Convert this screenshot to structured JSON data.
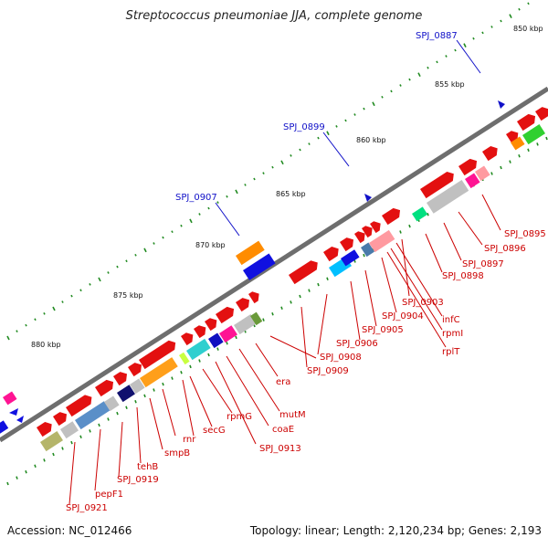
{
  "title": "Streptococcus pneumoniae JJA, complete genome",
  "footer": {
    "accession": "Accession: NC_012466",
    "topology": "Topology: linear; Length: 2,120,234 bp; Genes: 2,193"
  },
  "kbp_labels": [
    "850 kbp",
    "855 kbp",
    "860 kbp",
    "865 kbp",
    "870 kbp",
    "875 kbp",
    "880 kbp"
  ],
  "blue_labels": [
    "SPJ_0887",
    "SPJ_0899",
    "SPJ_0907"
  ],
  "red_labels": [
    "SPJ_0895",
    "SPJ_0896",
    "SPJ_0897",
    "SPJ_0898",
    "SPJ_0903",
    "infC",
    "rpmI",
    "rplT",
    "SPJ_0904",
    "SPJ_0905",
    "SPJ_0906",
    "SPJ_0908",
    "SPJ_0909",
    "era",
    "mutM",
    "coaE",
    "SPJ_0913",
    "rpmG",
    "secG",
    "rnr",
    "smpB",
    "tehB",
    "SPJ_0919",
    "pepF1",
    "SPJ_0921"
  ],
  "colors": {
    "backbone": "#777777",
    "ruler_ticks": "#228b22",
    "gene_forward": "#e31010",
    "blue_label": "#1010c8",
    "red_label": "#cc0000"
  }
}
